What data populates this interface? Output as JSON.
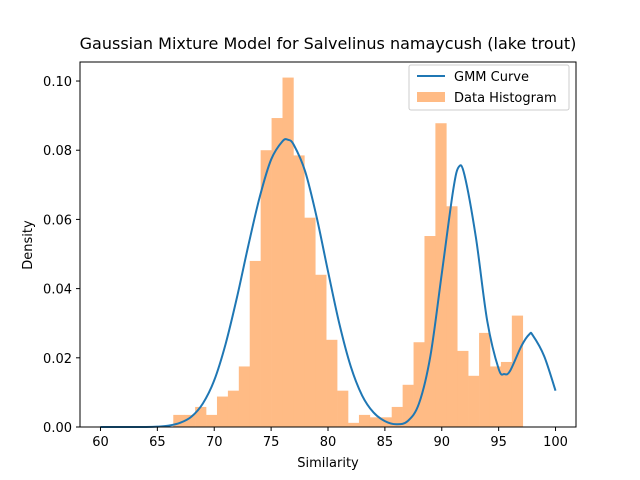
{
  "chart_data": {
    "type": "bar",
    "title": "Gaussian Mixture Model for Salvelinus namaycush (lake trout)",
    "xlabel": "Similarity",
    "ylabel": "Density",
    "xlim": [
      58.2,
      101.8
    ],
    "ylim": [
      0,
      0.1055
    ],
    "xticks": [
      60,
      65,
      70,
      75,
      80,
      85,
      90,
      95,
      100
    ],
    "yticks": [
      0.0,
      0.02,
      0.04,
      0.06,
      0.08,
      0.1
    ],
    "xtick_labels": [
      "60",
      "65",
      "70",
      "75",
      "80",
      "85",
      "90",
      "95",
      "100"
    ],
    "ytick_labels": [
      "0.00",
      "0.02",
      "0.04",
      "0.06",
      "0.08",
      "0.10"
    ],
    "grid": false,
    "legend_position": "top-right",
    "series": [
      {
        "name": "GMM Curve",
        "kind": "line",
        "color": "#1f77b4",
        "points": [
          [
            60,
            0.0
          ],
          [
            62,
            0.0
          ],
          [
            64,
            0.0
          ],
          [
            65,
            0.0001
          ],
          [
            66,
            0.0004
          ],
          [
            67,
            0.0012
          ],
          [
            68,
            0.003
          ],
          [
            69,
            0.0068
          ],
          [
            70,
            0.0135
          ],
          [
            71,
            0.024
          ],
          [
            72,
            0.0375
          ],
          [
            73,
            0.0525
          ],
          [
            74,
            0.0665
          ],
          [
            75,
            0.0773
          ],
          [
            76,
            0.0826
          ],
          [
            76.5,
            0.083
          ],
          [
            77,
            0.0815
          ],
          [
            78,
            0.0738
          ],
          [
            79,
            0.0607
          ],
          [
            80,
            0.045
          ],
          [
            81,
            0.0298
          ],
          [
            82,
            0.0175
          ],
          [
            83,
            0.0091
          ],
          [
            84,
            0.0042
          ],
          [
            85,
            0.0017
          ],
          [
            86,
            0.0008
          ],
          [
            87,
            0.0017
          ],
          [
            88,
            0.0068
          ],
          [
            89,
            0.0205
          ],
          [
            90,
            0.0443
          ],
          [
            91,
            0.0684
          ],
          [
            91.5,
            0.0752
          ],
          [
            92,
            0.0728
          ],
          [
            93,
            0.0548
          ],
          [
            94,
            0.0306
          ],
          [
            95,
            0.0168
          ],
          [
            95.5,
            0.0153
          ],
          [
            96,
            0.0162
          ],
          [
            97,
            0.0234
          ],
          [
            97.7,
            0.0268
          ],
          [
            98,
            0.0265
          ],
          [
            99,
            0.0205
          ],
          [
            100,
            0.0105
          ]
        ]
      },
      {
        "name": "Data Histogram",
        "kind": "histogram",
        "color": "#ffbb85",
        "bin_width": 0.96,
        "bins": [
          [
            66.4,
            0.0035
          ],
          [
            67.36,
            0.0035
          ],
          [
            68.32,
            0.0058
          ],
          [
            69.28,
            0.0035
          ],
          [
            70.24,
            0.0088
          ],
          [
            71.2,
            0.0105
          ],
          [
            72.16,
            0.0175
          ],
          [
            73.12,
            0.048
          ],
          [
            74.08,
            0.08
          ],
          [
            75.04,
            0.0893
          ],
          [
            76.0,
            0.101
          ],
          [
            76.96,
            0.0785
          ],
          [
            77.92,
            0.0605
          ],
          [
            78.88,
            0.044
          ],
          [
            79.84,
            0.0252
          ],
          [
            80.8,
            0.0105
          ],
          [
            81.76,
            0.0012
          ],
          [
            82.72,
            0.0035
          ],
          [
            83.68,
            0.0028
          ],
          [
            84.64,
            0.0028
          ],
          [
            85.6,
            0.0058
          ],
          [
            86.56,
            0.0122
          ],
          [
            87.52,
            0.0245
          ],
          [
            88.48,
            0.0552
          ],
          [
            89.44,
            0.0878
          ],
          [
            90.4,
            0.0638
          ],
          [
            91.36,
            0.022
          ],
          [
            92.32,
            0.0148
          ],
          [
            93.28,
            0.0272
          ],
          [
            94.24,
            0.0175
          ],
          [
            95.2,
            0.0188
          ],
          [
            96.16,
            0.0322
          ]
        ]
      }
    ]
  }
}
